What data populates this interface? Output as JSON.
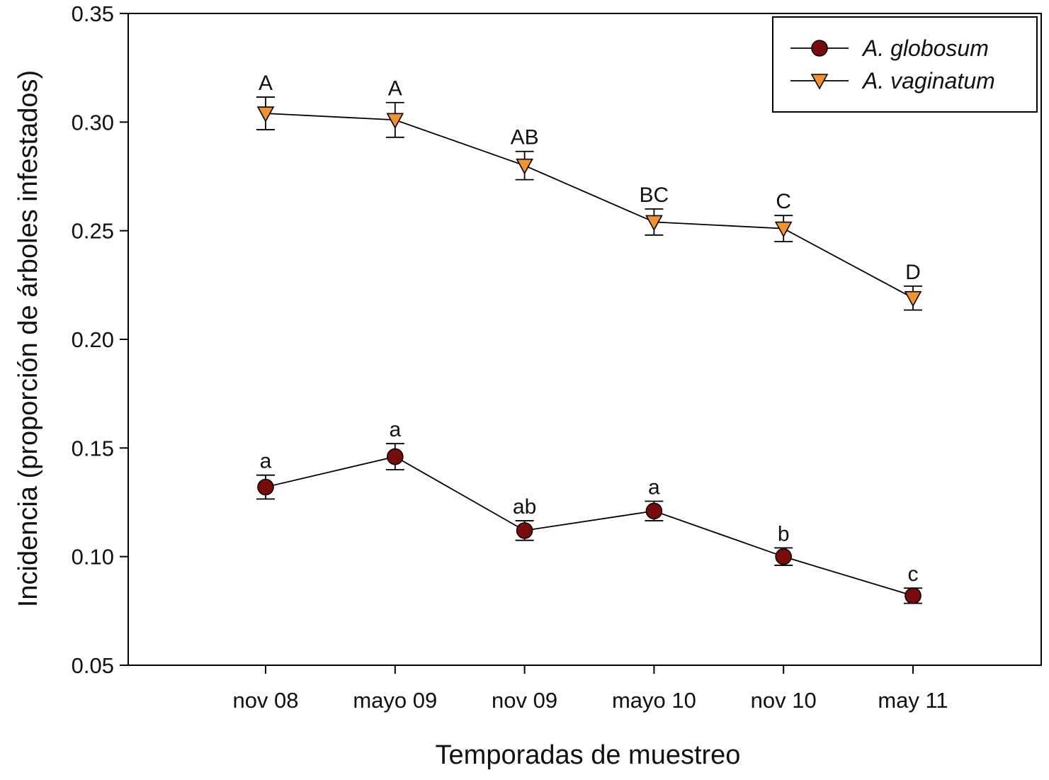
{
  "chart_data": {
    "type": "line",
    "title": "",
    "xlabel": "Temporadas de muestreo",
    "ylabel": "Incidencia (proporción de árboles infestados)",
    "categories": [
      "nov 08",
      "mayo 09",
      "nov 09",
      "mayo 10",
      "nov 10",
      "may 11"
    ],
    "ylim": [
      0.05,
      0.35
    ],
    "yticks": [
      0.05,
      0.1,
      0.15,
      0.2,
      0.25,
      0.3,
      0.35
    ],
    "ytick_labels": [
      "0.05",
      "0.10",
      "0.15",
      "0.20",
      "0.25",
      "0.30",
      "0.35"
    ],
    "grid": false,
    "legend_position": "top-right",
    "series": [
      {
        "name": "A. globosum",
        "marker": "circle",
        "color": "#7b0a0a",
        "values": [
          0.132,
          0.146,
          0.112,
          0.121,
          0.1,
          0.082
        ],
        "errors": [
          0.0055,
          0.006,
          0.0045,
          0.0045,
          0.004,
          0.0035
        ],
        "letters": [
          "a",
          "a",
          "ab",
          "a",
          "b",
          "c"
        ]
      },
      {
        "name": "A. vaginatum",
        "marker": "triangle-down",
        "color": "#f5922a",
        "values": [
          0.304,
          0.301,
          0.28,
          0.254,
          0.251,
          0.219
        ],
        "errors": [
          0.0075,
          0.008,
          0.0065,
          0.006,
          0.006,
          0.0055
        ],
        "letters": [
          "A",
          "A",
          "AB",
          "BC",
          "C",
          "D"
        ]
      }
    ]
  }
}
